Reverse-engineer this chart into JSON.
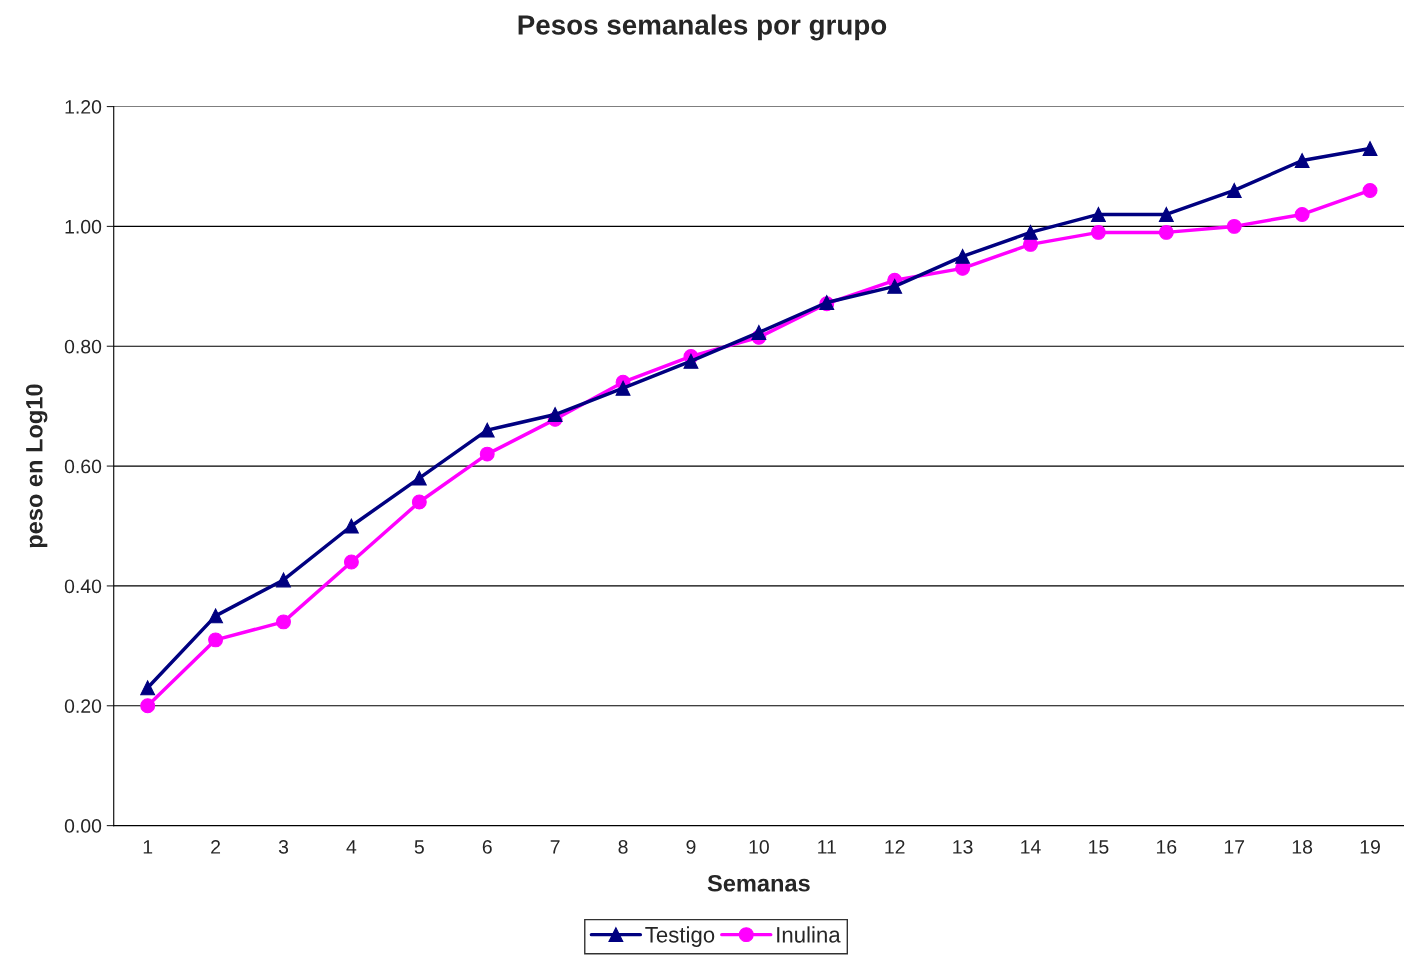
{
  "chart_data": {
    "type": "line",
    "title": "Pesos semanales por grupo",
    "xlabel": "Semanas",
    "ylabel": "peso en Log10",
    "categories": [
      "1",
      "2",
      "3",
      "4",
      "5",
      "6",
      "7",
      "8",
      "9",
      "10",
      "11",
      "12",
      "13",
      "14",
      "15",
      "16",
      "17",
      "18",
      "19"
    ],
    "series": [
      {
        "name": "Testigo",
        "color": "#000080",
        "marker": "triangle",
        "values": [
          0.23,
          0.35,
          0.41,
          0.5,
          0.58,
          0.66,
          0.686,
          0.73,
          0.775,
          0.823,
          0.873,
          0.9,
          0.95,
          0.99,
          1.02,
          1.02,
          1.06,
          1.11,
          1.13
        ]
      },
      {
        "name": "Inulina",
        "color": "#ff00ff",
        "marker": "circle",
        "values": [
          0.2,
          0.31,
          0.34,
          0.44,
          0.54,
          0.62,
          0.678,
          0.74,
          0.783,
          0.815,
          0.871,
          0.91,
          0.93,
          0.97,
          0.99,
          0.99,
          1.0,
          1.02,
          1.06
        ]
      }
    ],
    "ylim": [
      0,
      1.2
    ],
    "yticks": [
      {
        "value": 0,
        "label": "0.00"
      },
      {
        "value": 0.2,
        "label": "0.20"
      },
      {
        "value": 0.4,
        "label": "0.40"
      },
      {
        "value": 0.6,
        "label": "0.60"
      },
      {
        "value": 0.8,
        "label": "0.80"
      },
      {
        "value": 1.0,
        "label": "1.00"
      },
      {
        "value": 1.2,
        "label": "1.20"
      }
    ],
    "grid": "y",
    "legend": "bottom",
    "line_style": "solid"
  }
}
